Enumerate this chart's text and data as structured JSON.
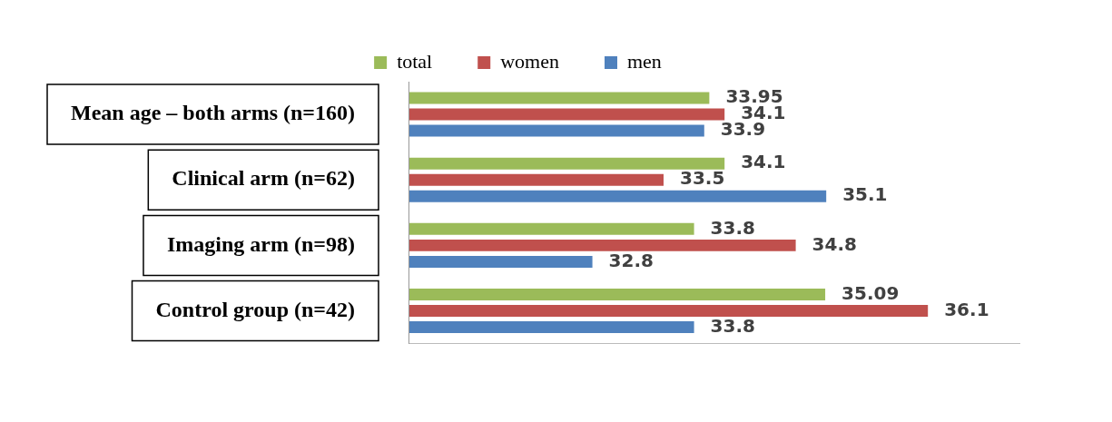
{
  "chart_data": {
    "type": "bar",
    "orientation": "horizontal",
    "categories": [
      "Mean age – both arms (n=160)",
      "Clinical arm (n=62)",
      "Imaging arm (n=98)",
      "Control group (n=42)"
    ],
    "series": [
      {
        "name": "total",
        "color": "#9bbb59",
        "values": [
          33.95,
          34.1,
          33.8,
          35.09
        ]
      },
      {
        "name": "women",
        "color": "#c0504d",
        "values": [
          34.1,
          33.5,
          34.8,
          36.1
        ]
      },
      {
        "name": "men",
        "color": "#4f81bd",
        "values": [
          33.9,
          35.1,
          32.8,
          33.8
        ]
      }
    ],
    "xlim": [
      31,
      37
    ],
    "data_labels": true,
    "legend": "top",
    "tick_labels": "y"
  }
}
